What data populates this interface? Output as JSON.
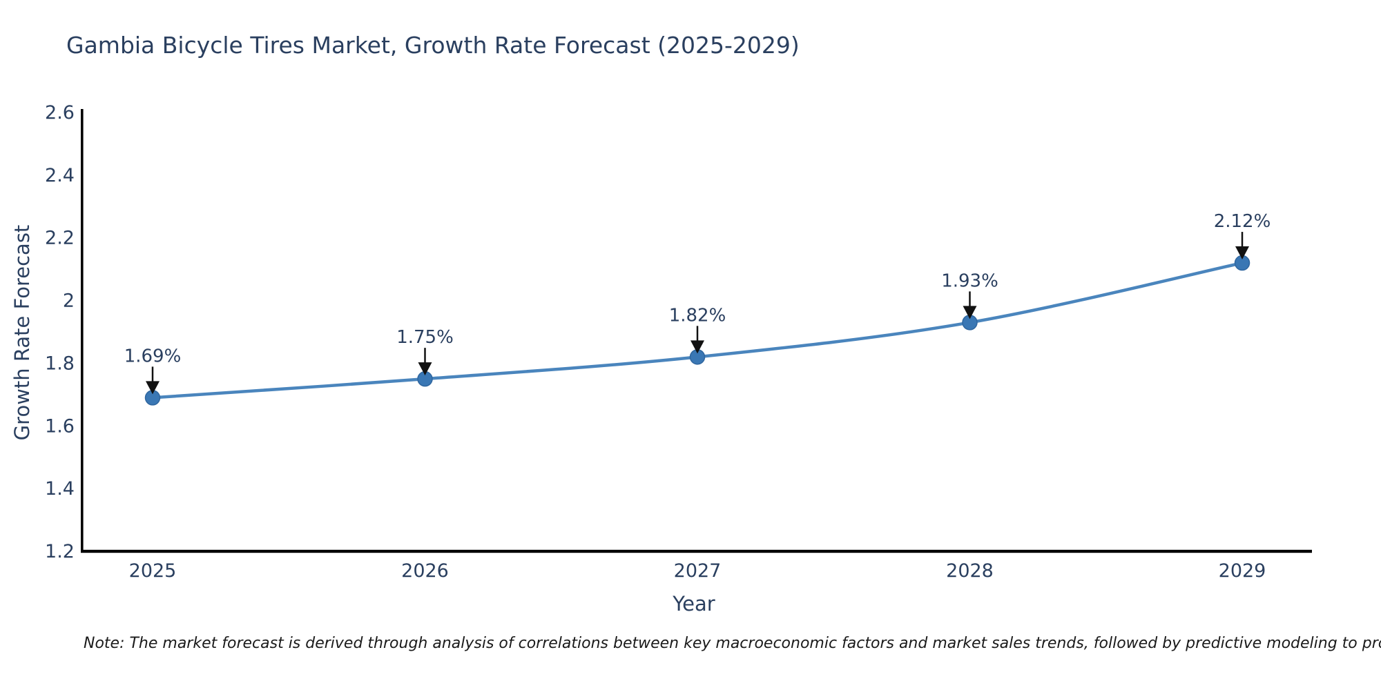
{
  "page": {
    "note": "Note: The market forecast is derived through analysis of correlations between key macroeconomic factors and market sales trends, followed by predictive modeling to project future sales."
  },
  "chart_data": {
    "type": "line",
    "title": "Gambia Bicycle Tires Market, Growth Rate Forecast (2025-2029)",
    "xlabel": "Year",
    "ylabel": "Growth Rate Forecast",
    "x": [
      2025,
      2026,
      2027,
      2028,
      2029
    ],
    "series": [
      {
        "name": "Growth Rate Forecast",
        "values": [
          1.69,
          1.75,
          1.82,
          1.93,
          2.12
        ]
      }
    ],
    "point_labels": [
      "1.69%",
      "1.75%",
      "1.82%",
      "1.93%",
      "2.12%"
    ],
    "ylim": [
      1.2,
      2.6
    ],
    "yticks": [
      1.2,
      1.4,
      1.6,
      1.8,
      2,
      2.2,
      2.4,
      2.6
    ],
    "grid": false,
    "legend": "none",
    "line_shape": "spline",
    "annotation_style": "value label above point with downward black arrow",
    "colors": {
      "line": "#4a85bd",
      "marker": "#3a77b4",
      "marker_edge": "#2f669f",
      "axis": "#000000",
      "text": "#2a3f5f",
      "arrow": "#111111",
      "note": "#1a1a1a",
      "background": "#ffffff"
    }
  }
}
